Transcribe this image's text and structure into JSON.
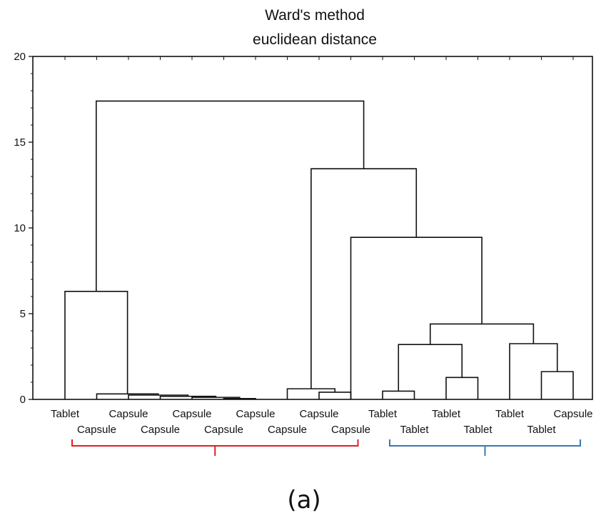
{
  "chart_data": {
    "type": "dendrogram",
    "title_lines": [
      "Ward's method",
      "euclidean distance"
    ],
    "xlabel": "",
    "ylabel": "",
    "ylim": [
      0,
      20
    ],
    "yticks": [
      0,
      5,
      10,
      15,
      20
    ],
    "grid": false,
    "legend": "none",
    "leaves": [
      "Tablet",
      "Capsule",
      "Capsule",
      "Capsule",
      "Capsule",
      "Capsule",
      "Capsule",
      "Capsule",
      "Capsule",
      "Capsule",
      "Tablet",
      "Tablet",
      "Tablet",
      "Tablet",
      "Tablet",
      "Tablet",
      "Capsule"
    ],
    "merges": [
      {
        "left": 5,
        "right": 6,
        "height": 0.05
      },
      {
        "left": 4,
        "right": 5.5,
        "height": 0.12
      },
      {
        "left": 3,
        "right": 4.75,
        "height": 0.18
      },
      {
        "left": 2,
        "right": 3.875,
        "height": 0.25
      },
      {
        "left": 1,
        "right": 2.9375,
        "height": 0.32
      },
      {
        "left": 0,
        "right": 1.96875,
        "height": 6.3
      },
      {
        "left": 8,
        "right": 9,
        "height": 0.42
      },
      {
        "left": 7,
        "right": 8.5,
        "height": 0.62
      },
      {
        "left": 10,
        "right": 11,
        "height": 0.48
      },
      {
        "left": 12,
        "right": 13,
        "height": 1.28
      },
      {
        "left": 10.5,
        "right": 12.5,
        "height": 3.2
      },
      {
        "left": 15,
        "right": 16,
        "height": 1.62
      },
      {
        "left": 14,
        "right": 15.5,
        "height": 3.25
      },
      {
        "left": 11.5,
        "right": 14.75,
        "height": 4.4
      },
      {
        "left": 9,
        "right": 13.125,
        "height": 9.45
      },
      {
        "left": 7.75,
        "right": 11.0625,
        "height": 13.45
      },
      {
        "left": 0.984375,
        "right": 9.40625,
        "height": 17.4
      }
    ],
    "groups": [
      {
        "from": 0,
        "to": 9,
        "color": "#e02020"
      },
      {
        "from": 10,
        "to": 16,
        "color": "#3a78b5"
      }
    ],
    "line_color": "#111111"
  },
  "caption": "(a)"
}
